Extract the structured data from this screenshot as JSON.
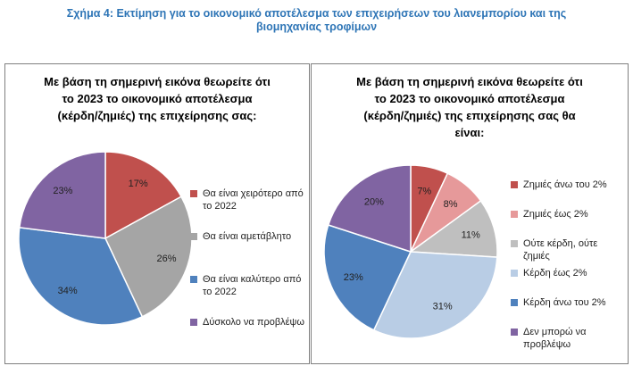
{
  "figure_title": {
    "line1": "Σχήμα 4: Εκτίμηση για το οικονομικό αποτέλεσμα των επιχειρήσεων του λιανεμπορίου και της",
    "line2": "βιομηχανίας τροφίμων"
  },
  "chart_data": [
    {
      "type": "pie",
      "title_lines": [
        "Με βάση τη σημερινή εικόνα θεωρείτε ότι",
        "το 2023 το οικονομικό αποτέλεσμα",
        "(κέρδη/ζημιές) της επιχείρησης σας:"
      ],
      "legend_position": "right",
      "slices": [
        {
          "label_lines": [
            "Θα είναι χειρότερο από",
            "το 2022"
          ],
          "value": 17,
          "display": "17%",
          "color": "#c0504d"
        },
        {
          "label_lines": [
            "Θα είναι αμετάβλητο"
          ],
          "value": 26,
          "display": "26%",
          "color": "#a5a5a5"
        },
        {
          "label_lines": [
            "Θα είναι καλύτερο από",
            "το 2022"
          ],
          "value": 34,
          "display": "34%",
          "color": "#4f81bd"
        },
        {
          "label_lines": [
            "Δύσκολο να προβλέψω"
          ],
          "value": 23,
          "display": "23%",
          "color": "#8064a2"
        }
      ]
    },
    {
      "type": "pie",
      "title_lines": [
        "Με βάση τη σημερινή εικόνα θεωρείτε ότι",
        "το 2023 το οικονομικό αποτέλεσμα",
        "(κέρδη/ζημιές) της επιχείρησης σας θα",
        "είναι:"
      ],
      "legend_position": "right",
      "slices": [
        {
          "label_lines": [
            "Ζημιές άνω του 2%"
          ],
          "value": 7,
          "display": "7%",
          "color": "#c0504d"
        },
        {
          "label_lines": [
            "Ζημιές έως 2%"
          ],
          "value": 8,
          "display": "8%",
          "color": "#e6999a"
        },
        {
          "label_lines": [
            "Ούτε κέρδη, ούτε",
            "ζημιές"
          ],
          "value": 11,
          "display": "11%",
          "color": "#bfbfbf"
        },
        {
          "label_lines": [
            "Κέρδη έως 2%"
          ],
          "value": 31,
          "display": "31%",
          "color": "#b9cde5"
        },
        {
          "label_lines": [
            "Κέρδη άνω του 2%"
          ],
          "value": 23,
          "display": "23%",
          "color": "#4f81bd"
        },
        {
          "label_lines": [
            "Δεν μπορώ να",
            "προβλέψω"
          ],
          "value": 20,
          "display": "20%",
          "color": "#8064a2"
        }
      ]
    }
  ]
}
